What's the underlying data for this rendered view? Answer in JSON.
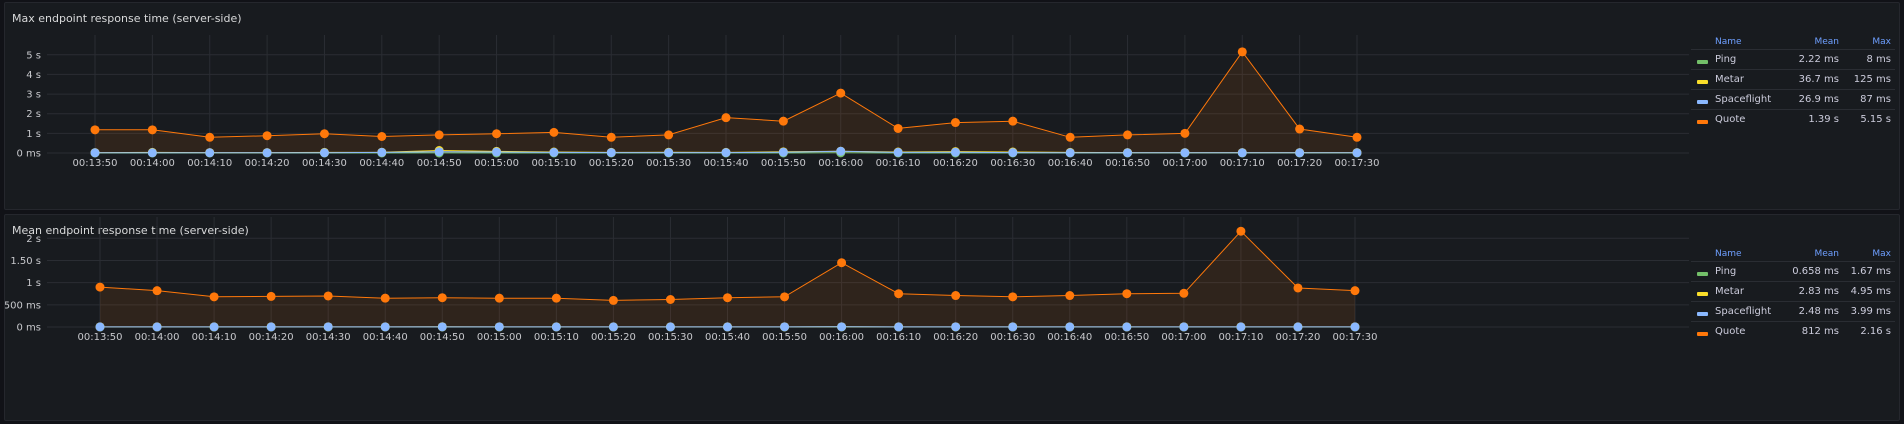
{
  "colors": {
    "ping": "#73bf69",
    "metar": "#fade2a",
    "spaceflight": "#8ab8ff",
    "quote": "#ff780a"
  },
  "legend_headers": {
    "name": "Name",
    "mean": "Mean",
    "max": "Max"
  },
  "chart_data": [
    {
      "type": "line",
      "title": "Max endpoint response time (server-side)",
      "x": [
        "00:13:50",
        "00:14:00",
        "00:14:10",
        "00:14:20",
        "00:14:30",
        "00:14:40",
        "00:14:50",
        "00:15:00",
        "00:15:10",
        "00:15:20",
        "00:15:30",
        "00:15:40",
        "00:15:50",
        "00:16:00",
        "00:16:10",
        "00:16:20",
        "00:16:30",
        "00:16:40",
        "00:16:50",
        "00:17:00",
        "00:17:10",
        "00:17:20",
        "00:17:30"
      ],
      "x_ticks": [
        "00:13:50",
        "00:14:00",
        "00:14:10",
        "00:14:20",
        "00:14:30",
        "00:14:40",
        "00:14:50",
        "00:15:00",
        "00:15:10",
        "00:15:20",
        "00:15:30",
        "00:15:40",
        "00:15:50",
        "00:16:00",
        "00:16:10",
        "00:16:20",
        "00:16:30",
        "00:16:40",
        "00:16:50",
        "00:17:00",
        "00:17:10",
        "00:17:20",
        "00:17:30"
      ],
      "y_ticks": [
        {
          "value": 0,
          "label": "0 ms"
        },
        {
          "value": 1,
          "label": "1 s"
        },
        {
          "value": 2,
          "label": "2 s"
        },
        {
          "value": 3,
          "label": "3 s"
        },
        {
          "value": 4,
          "label": "4 s"
        },
        {
          "value": 5,
          "label": "5 s"
        }
      ],
      "ylim": [
        0,
        5.6
      ],
      "y_unit": "s",
      "grid": true,
      "legend_placement": "right",
      "series": [
        {
          "name": "Ping",
          "color_key": "ping",
          "mean": "2.22 ms",
          "max": "8 ms",
          "values": [
            0.002,
            0.002,
            0.002,
            0.002,
            0.002,
            0.002,
            0.003,
            0.002,
            0.002,
            0.002,
            0.002,
            0.002,
            0.002,
            0.008,
            0.002,
            0.002,
            0.002,
            0.002,
            0.002,
            0.002,
            0.002,
            0.002,
            0.002
          ]
        },
        {
          "name": "Metar",
          "color_key": "metar",
          "mean": "36.7 ms",
          "max": "125 ms",
          "values": [
            0.02,
            0.03,
            0.02,
            0.02,
            0.03,
            0.04,
            0.125,
            0.08,
            0.05,
            0.03,
            0.04,
            0.03,
            0.06,
            0.09,
            0.05,
            0.07,
            0.05,
            0.03,
            0.02,
            0.02,
            0.02,
            0.02,
            0.02
          ]
        },
        {
          "name": "Spaceflight",
          "color_key": "spaceflight",
          "mean": "26.9 ms",
          "max": "87 ms",
          "values": [
            0.01,
            0.01,
            0.01,
            0.01,
            0.01,
            0.03,
            0.06,
            0.05,
            0.03,
            0.02,
            0.02,
            0.02,
            0.04,
            0.087,
            0.03,
            0.04,
            0.02,
            0.01,
            0.01,
            0.01,
            0.01,
            0.01,
            0.01
          ]
        },
        {
          "name": "Quote",
          "color_key": "quote",
          "mean": "1.39 s",
          "max": "5.15 s",
          "values": [
            1.18,
            1.18,
            0.8,
            0.88,
            0.98,
            0.84,
            0.92,
            0.98,
            1.05,
            0.8,
            0.92,
            1.8,
            1.62,
            3.05,
            1.25,
            1.55,
            1.62,
            0.8,
            0.92,
            1.0,
            5.15,
            1.22,
            0.8
          ]
        }
      ]
    },
    {
      "type": "line",
      "title": "Mean endpoint response time (server-side)",
      "x": [
        "00:13:50",
        "00:14:00",
        "00:14:10",
        "00:14:20",
        "00:14:30",
        "00:14:40",
        "00:14:50",
        "00:15:00",
        "00:15:10",
        "00:15:20",
        "00:15:30",
        "00:15:40",
        "00:15:50",
        "00:16:00",
        "00:16:10",
        "00:16:20",
        "00:16:30",
        "00:16:40",
        "00:16:50",
        "00:17:00",
        "00:17:10",
        "00:17:20",
        "00:17:30"
      ],
      "x_ticks": [
        "00:13:50",
        "00:14:00",
        "00:14:10",
        "00:14:20",
        "00:14:30",
        "00:14:40",
        "00:14:50",
        "00:15:00",
        "00:15:10",
        "00:15:20",
        "00:15:30",
        "00:15:40",
        "00:15:50",
        "00:16:00",
        "00:16:10",
        "00:16:20",
        "00:16:30",
        "00:16:40",
        "00:16:50",
        "00:17:00",
        "00:17:10",
        "00:17:20",
        "00:17:30"
      ],
      "y_ticks": [
        {
          "value": 0,
          "label": "0 ms"
        },
        {
          "value": 0.5,
          "label": "500 ms"
        },
        {
          "value": 1,
          "label": "1 s"
        },
        {
          "value": 1.5,
          "label": "1.50 s"
        },
        {
          "value": 2,
          "label": "2 s"
        }
      ],
      "ylim": [
        0,
        2.3
      ],
      "y_unit": "s",
      "grid": true,
      "legend_placement": "right",
      "series": [
        {
          "name": "Ping",
          "color_key": "ping",
          "mean": "0.658 ms",
          "max": "1.67 ms",
          "values": [
            0.0006,
            0.0006,
            0.0006,
            0.0006,
            0.0007,
            0.0006,
            0.0007,
            0.0006,
            0.0006,
            0.0006,
            0.0006,
            0.0007,
            0.0006,
            0.00167,
            0.0006,
            0.0006,
            0.0006,
            0.0006,
            0.0006,
            0.0006,
            0.0006,
            0.0006,
            0.0006
          ]
        },
        {
          "name": "Metar",
          "color_key": "metar",
          "mean": "2.83 ms",
          "max": "4.95 ms",
          "values": [
            0.003,
            0.003,
            0.002,
            0.003,
            0.003,
            0.003,
            0.00495,
            0.003,
            0.003,
            0.002,
            0.003,
            0.003,
            0.003,
            0.004,
            0.003,
            0.003,
            0.003,
            0.002,
            0.003,
            0.003,
            0.003,
            0.002,
            0.003
          ]
        },
        {
          "name": "Spaceflight",
          "color_key": "spaceflight",
          "mean": "2.48 ms",
          "max": "3.99 ms",
          "values": [
            0.002,
            0.002,
            0.002,
            0.002,
            0.003,
            0.002,
            0.003,
            0.003,
            0.002,
            0.002,
            0.002,
            0.002,
            0.003,
            0.00399,
            0.002,
            0.003,
            0.002,
            0.002,
            0.002,
            0.002,
            0.002,
            0.002,
            0.002
          ]
        },
        {
          "name": "Quote",
          "color_key": "quote",
          "mean": "812 ms",
          "max": "2.16 s",
          "values": [
            0.9,
            0.82,
            0.68,
            0.69,
            0.7,
            0.65,
            0.66,
            0.65,
            0.65,
            0.6,
            0.62,
            0.66,
            0.68,
            1.45,
            0.75,
            0.71,
            0.68,
            0.71,
            0.75,
            0.76,
            2.16,
            0.88,
            0.82
          ]
        }
      ]
    }
  ]
}
